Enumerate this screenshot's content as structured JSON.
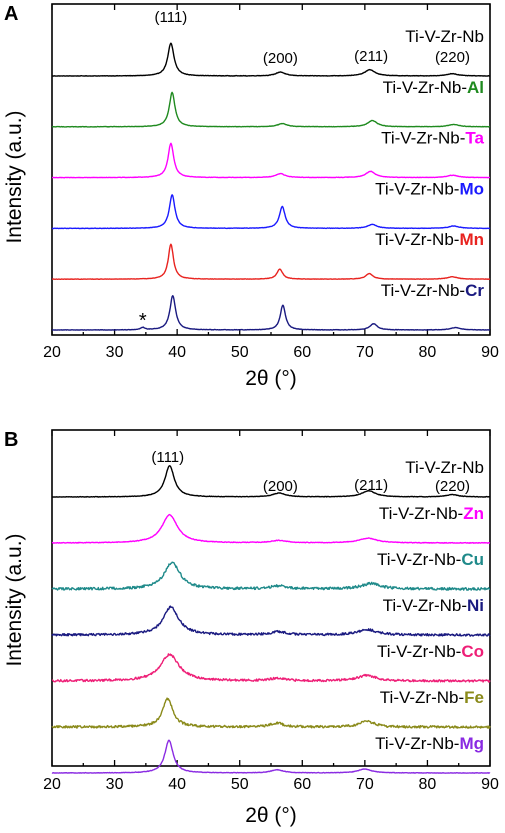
{
  "chart_data": [
    {
      "panel": "A",
      "type": "line",
      "xlabel": "2θ (°)",
      "ylabel": "Intensity (a.u.)",
      "xlim": [
        20,
        90
      ],
      "xticks": [
        20,
        30,
        40,
        50,
        60,
        70,
        80,
        90
      ],
      "peak_labels": [
        {
          "text": "(111)",
          "x": 39.0
        },
        {
          "text": "(200)",
          "x": 56.5
        },
        {
          "text": "(211)",
          "x": 71.0
        },
        {
          "text": "(220)",
          "x": 84.0
        }
      ],
      "annotation": {
        "text": "*",
        "x": 34.5
      },
      "series": [
        {
          "base": "Ti-V-Zr-Nb",
          "element": "",
          "color": "#000000",
          "peaks": [
            {
              "x": 39.0,
              "h": 42,
              "w": 0.6
            },
            {
              "x": 56.5,
              "h": 5,
              "w": 0.9
            },
            {
              "x": 70.8,
              "h": 8,
              "w": 1.0
            },
            {
              "x": 84.0,
              "h": 3,
              "w": 1.0
            }
          ]
        },
        {
          "base": "Ti-V-Zr-Nb-",
          "element": "Al",
          "color": "#1f8a1f",
          "peaks": [
            {
              "x": 39.2,
              "h": 44,
              "w": 0.55
            },
            {
              "x": 56.8,
              "h": 4,
              "w": 0.9
            },
            {
              "x": 71.2,
              "h": 8,
              "w": 0.9
            },
            {
              "x": 84.2,
              "h": 3,
              "w": 1.0
            }
          ]
        },
        {
          "base": "Ti-V-Zr-Nb-",
          "element": "Ta",
          "color": "#ff00ff",
          "peaks": [
            {
              "x": 39.0,
              "h": 44,
              "w": 0.55
            },
            {
              "x": 56.5,
              "h": 5,
              "w": 0.9
            },
            {
              "x": 70.9,
              "h": 8,
              "w": 0.9
            },
            {
              "x": 84.0,
              "h": 3,
              "w": 1.0
            }
          ]
        },
        {
          "base": "Ti-V-Zr-Nb-",
          "element": "Mo",
          "color": "#1a1aff",
          "peaks": [
            {
              "x": 39.2,
              "h": 43,
              "w": 0.55
            },
            {
              "x": 56.8,
              "h": 28,
              "w": 0.55
            },
            {
              "x": 71.2,
              "h": 5,
              "w": 0.9
            },
            {
              "x": 84.2,
              "h": 3,
              "w": 1.0
            }
          ]
        },
        {
          "base": "Ti-V-Zr-Nb-",
          "element": "Mn",
          "color": "#e8231f",
          "peaks": [
            {
              "x": 39.0,
              "h": 45,
              "w": 0.5
            },
            {
              "x": 56.4,
              "h": 13,
              "w": 0.55
            },
            {
              "x": 70.7,
              "h": 7,
              "w": 0.7
            },
            {
              "x": 84.0,
              "h": 3,
              "w": 1.0
            }
          ]
        },
        {
          "base": "Ti-V-Zr-Nb-",
          "element": "Cr",
          "color": "#1a1a80",
          "peaks": [
            {
              "x": 34.5,
              "h": 3,
              "w": 0.4
            },
            {
              "x": 39.3,
              "h": 44,
              "w": 0.55
            },
            {
              "x": 56.9,
              "h": 32,
              "w": 0.5
            },
            {
              "x": 71.4,
              "h": 8,
              "w": 0.7
            },
            {
              "x": 84.5,
              "h": 3,
              "w": 1.0
            }
          ]
        }
      ]
    },
    {
      "panel": "B",
      "type": "line",
      "xlabel": "2θ (°)",
      "ylabel": "Intensity (a.u.)",
      "xlim": [
        20,
        90
      ],
      "xticks": [
        20,
        30,
        40,
        50,
        60,
        70,
        80,
        90
      ],
      "peak_labels": [
        {
          "text": "(111)",
          "x": 38.5
        },
        {
          "text": "(200)",
          "x": 56.5
        },
        {
          "text": "(211)",
          "x": 71.0
        },
        {
          "text": "(220)",
          "x": 84.0
        }
      ],
      "series": [
        {
          "base": "Ti-V-Zr-Nb",
          "element": "",
          "color": "#000000",
          "noise": 0.3,
          "peaks": [
            {
              "x": 38.8,
              "h": 40,
              "w": 0.9
            },
            {
              "x": 56.3,
              "h": 5,
              "w": 1.2
            },
            {
              "x": 70.6,
              "h": 8,
              "w": 1.3
            },
            {
              "x": 84.0,
              "h": 3,
              "w": 1.2
            }
          ]
        },
        {
          "base": "Ti-V-Zr-Nb-",
          "element": "Zn",
          "color": "#ff00ff",
          "noise": 0.4,
          "peaks": [
            {
              "x": 38.8,
              "h": 36,
              "w": 1.5
            },
            {
              "x": 56.2,
              "h": 3,
              "w": 1.5
            },
            {
              "x": 70.5,
              "h": 6,
              "w": 1.8
            }
          ]
        },
        {
          "base": "Ti-V-Zr-Nb-",
          "element": "Cu",
          "color": "#1f8a8a",
          "noise": 1.6,
          "peaks": [
            {
              "x": 39.2,
              "h": 34,
              "w": 1.5
            },
            {
              "x": 56.3,
              "h": 4,
              "w": 1.5
            },
            {
              "x": 71.0,
              "h": 7,
              "w": 1.8
            }
          ]
        },
        {
          "base": "Ti-V-Zr-Nb-",
          "element": "Ni",
          "color": "#1a1a80",
          "noise": 1.4,
          "peaks": [
            {
              "x": 39.0,
              "h": 36,
              "w": 1.5
            },
            {
              "x": 56.2,
              "h": 4,
              "w": 1.5
            },
            {
              "x": 70.4,
              "h": 7,
              "w": 1.8
            }
          ]
        },
        {
          "base": "Ti-V-Zr-Nb-",
          "element": "Co",
          "color": "#ee1f77",
          "noise": 1.4,
          "peaks": [
            {
              "x": 38.8,
              "h": 34,
              "w": 1.8
            },
            {
              "x": 56.0,
              "h": 3,
              "w": 1.5
            },
            {
              "x": 70.3,
              "h": 7,
              "w": 1.8
            }
          ]
        },
        {
          "base": "Ti-V-Zr-Nb-",
          "element": "Fe",
          "color": "#8a8a1a",
          "noise": 1.5,
          "peaks": [
            {
              "x": 38.5,
              "h": 36,
              "w": 1.0
            },
            {
              "x": 55.9,
              "h": 5,
              "w": 1.2
            },
            {
              "x": 70.3,
              "h": 8,
              "w": 1.3
            }
          ]
        },
        {
          "base": "Ti-V-Zr-Nb-",
          "element": "Mg",
          "color": "#8a2be2",
          "noise": 0.3,
          "peaks": [
            {
              "x": 38.7,
              "h": 42,
              "w": 0.8
            },
            {
              "x": 56.0,
              "h": 4,
              "w": 1.2
            },
            {
              "x": 70.0,
              "h": 5,
              "w": 1.3
            }
          ]
        }
      ]
    }
  ]
}
